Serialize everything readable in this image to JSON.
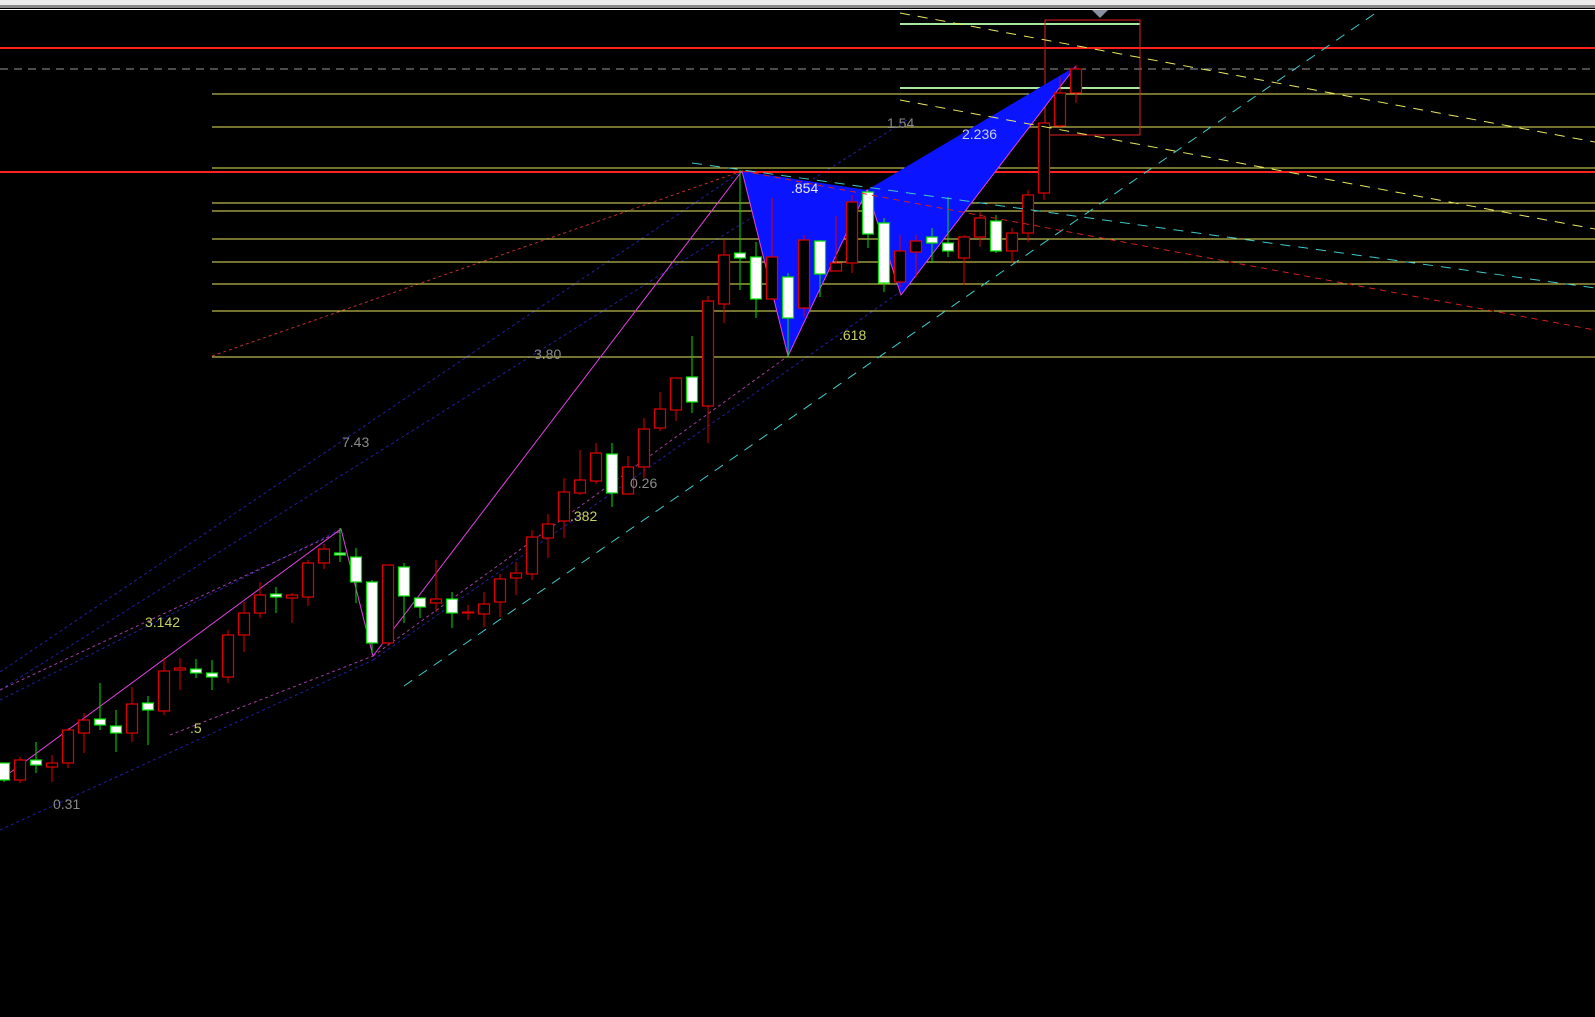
{
  "colors": {
    "background": "#000000",
    "up_candle": "#e00000",
    "down_candle_fill": "#ffffff",
    "down_candle_outline": "#00e000",
    "level_line": "#e8e860",
    "key_level": "#ff2020",
    "pattern_fill": "#0a14ff",
    "pattern_edge": "#e040e0",
    "channel": "#40c8c8",
    "fan": "#2020a0"
  },
  "chart_data": {
    "type": "candlestick",
    "title": "",
    "xlabel": "",
    "ylabel": "",
    "grid": false,
    "candles": [
      [
        237,
        237,
        218,
        220
      ],
      [
        220,
        243,
        217,
        240
      ],
      [
        240,
        258,
        227,
        235
      ],
      [
        233,
        245,
        218,
        237
      ],
      [
        237,
        272,
        232,
        270
      ],
      [
        267,
        287,
        247,
        280
      ],
      [
        281,
        317,
        270,
        275
      ],
      [
        274,
        290,
        248,
        267
      ],
      [
        267,
        313,
        258,
        296
      ],
      [
        297,
        304,
        255,
        290
      ],
      [
        289,
        342,
        285,
        329
      ],
      [
        330,
        342,
        310,
        332
      ],
      [
        331,
        341,
        322,
        327
      ],
      [
        327,
        340,
        310,
        323
      ],
      [
        323,
        370,
        317,
        365
      ],
      [
        365,
        398,
        348,
        387
      ],
      [
        387,
        418,
        382,
        405
      ],
      [
        406,
        413,
        387,
        403
      ],
      [
        402,
        407,
        377,
        405
      ],
      [
        403,
        440,
        394,
        437
      ],
      [
        437,
        456,
        431,
        451
      ],
      [
        447,
        472,
        438,
        445
      ],
      [
        443,
        452,
        397,
        418
      ],
      [
        418,
        420,
        347,
        357
      ],
      [
        357,
        435,
        357,
        435
      ],
      [
        433,
        437,
        377,
        404
      ],
      [
        402,
        402,
        382,
        393
      ],
      [
        397,
        440,
        388,
        401
      ],
      [
        401,
        408,
        372,
        387
      ],
      [
        387,
        395,
        380,
        388
      ],
      [
        386,
        408,
        373,
        396
      ],
      [
        398,
        426,
        383,
        421
      ],
      [
        422,
        438,
        405,
        427
      ],
      [
        426,
        470,
        420,
        463
      ],
      [
        462,
        486,
        442,
        476
      ],
      [
        479,
        522,
        462,
        508
      ],
      [
        507,
        550,
        505,
        520
      ],
      [
        519,
        557,
        516,
        547
      ],
      [
        546,
        557,
        493,
        507
      ],
      [
        506,
        544,
        506,
        533
      ],
      [
        533,
        582,
        522,
        571
      ],
      [
        572,
        608,
        569,
        591
      ],
      [
        590,
        622,
        579,
        622
      ],
      [
        623,
        664,
        587,
        598
      ],
      [
        594,
        704,
        557,
        699
      ],
      [
        696,
        760,
        677,
        745
      ],
      [
        747,
        830,
        710,
        742
      ],
      [
        743,
        758,
        682,
        701
      ],
      [
        701,
        802,
        700,
        743
      ],
      [
        723,
        727,
        643,
        682
      ],
      [
        692,
        765,
        683,
        760
      ],
      [
        759,
        760,
        703,
        726
      ],
      [
        729,
        784,
        729,
        737
      ],
      [
        737,
        805,
        727,
        798
      ],
      [
        808,
        810,
        752,
        766
      ],
      [
        777,
        782,
        708,
        717
      ],
      [
        718,
        765,
        713,
        749
      ],
      [
        748,
        765,
        723,
        759
      ],
      [
        763,
        772,
        737,
        757
      ],
      [
        757,
        803,
        743,
        749
      ],
      [
        742,
        765,
        715,
        763
      ],
      [
        763,
        788,
        753,
        782
      ],
      [
        779,
        785,
        747,
        749
      ],
      [
        749,
        772,
        737,
        767
      ],
      [
        767,
        810,
        758,
        805
      ],
      [
        807,
        877,
        800,
        877
      ],
      [
        874,
        923,
        873,
        907
      ],
      [
        907,
        935,
        897,
        931
      ]
    ],
    "candle_fields": [
      "open",
      "high",
      "low",
      "close"
    ],
    "horizontal_levels": [
      {
        "price": 952,
        "style": "key"
      },
      {
        "price": 931,
        "style": "dashed"
      },
      {
        "price": 906,
        "style": "level"
      },
      {
        "price": 873,
        "style": "level"
      },
      {
        "price": 832,
        "style": "level"
      },
      {
        "price": 828,
        "style": "key"
      },
      {
        "price": 797,
        "style": "level"
      },
      {
        "price": 789,
        "style": "level"
      },
      {
        "price": 761,
        "style": "level"
      },
      {
        "price": 738,
        "style": "level"
      },
      {
        "price": 716,
        "style": "level"
      },
      {
        "price": 689,
        "style": "level"
      },
      {
        "price": 643,
        "style": "level"
      }
    ],
    "fib_labels": [
      "1.54",
      "2.236",
      ".854",
      ".618",
      "3.80",
      "7.43",
      "0.26",
      ".382",
      "3.142",
      ".5",
      "0.31"
    ]
  }
}
